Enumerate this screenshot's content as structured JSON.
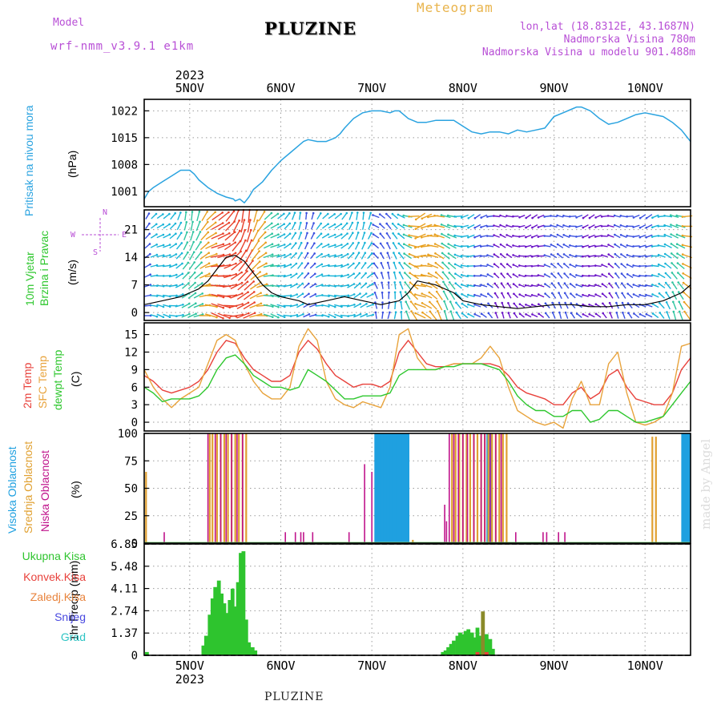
{
  "header": {
    "model_label": "Model",
    "model_name": "wrf-nmm_v3.9.1  e1km",
    "title": "PLUZINE",
    "subtitle": "Meteogram",
    "location": "lon,lat (18.8312E, 43.1687N)",
    "elevation": "Nadmorska Visina 780m",
    "model_elevation": "Nadmorska Visina u modelu 901.488m",
    "footer_title": "PLUZINE",
    "credit": "made by Angel"
  },
  "colors": {
    "pressure": "#2aa3e0",
    "temp2m": "#e8413b",
    "sfctemp": "#e8a33c",
    "dewpoint": "#2ec72e",
    "high_cloud": "#1fa0e0",
    "mid_cloud": "#e0a030",
    "low_cloud": "#c0148c",
    "total_precip": "#2ec42e",
    "conv_precip": "#e8413b",
    "frozen_precip": "#e8833c",
    "snow": "#4848e0",
    "hail": "#2ec4c4",
    "wind_slow": "#6a14c8",
    "wind_mid": "#18b4d8",
    "wind_fast": "#e8412a"
  },
  "axes": {
    "year": "2023",
    "dates": [
      "5NOV",
      "6NOV",
      "7NOV",
      "8NOV",
      "9NOV",
      "10NOV"
    ]
  },
  "chart_data": [
    {
      "type": "line",
      "name": "pressure",
      "ylabel": "Pritisak na nivou mora",
      "unit": "(hPa)",
      "ylim": [
        997,
        1025
      ],
      "yticks": [
        1001,
        1008,
        1015,
        1022
      ],
      "x_days": [
        4.5,
        6.5
      ],
      "series": [
        {
          "x": [
            4.5,
            4.55,
            4.6,
            4.7,
            4.8,
            4.9,
            4.97,
            5.0,
            5.05,
            5.1,
            5.2,
            5.3,
            5.4,
            5.48,
            5.5,
            5.55,
            5.6,
            5.65,
            5.7,
            5.8,
            5.9,
            6.0,
            6.1,
            6.2,
            6.25,
            6.3,
            6.4,
            6.5,
            6.6,
            6.65,
            6.7,
            6.8,
            6.9,
            7.0,
            7.1,
            7.2,
            7.25,
            7.3,
            7.4,
            7.5,
            7.6,
            7.7,
            7.8,
            7.9,
            8.0,
            8.1,
            8.2,
            8.3,
            8.4,
            8.5,
            8.6,
            8.7,
            8.8,
            8.9,
            9.0,
            9.1,
            9.2,
            9.25,
            9.3,
            9.4,
            9.5,
            9.6,
            9.7,
            9.8,
            9.9,
            10.0,
            10.1,
            10.2,
            10.3,
            10.4,
            10.5
          ],
          "values": [
            999,
            1001,
            1002,
            1003.5,
            1005,
            1006.5,
            1006.5,
            1006.5,
            1005.5,
            1004,
            1002,
            1000.5,
            999.5,
            999,
            998.5,
            999,
            998,
            999.5,
            1001.5,
            1003.5,
            1006.5,
            1009,
            1011,
            1013,
            1014,
            1014.5,
            1014,
            1014,
            1015,
            1016,
            1017.5,
            1020,
            1021.5,
            1022,
            1022,
            1021.5,
            1022,
            1022,
            1020,
            1019,
            1019,
            1019.5,
            1019.5,
            1019.5,
            1018,
            1016.5,
            1016,
            1016.5,
            1016.5,
            1016,
            1017,
            1016.5,
            1017,
            1017.5,
            1020.5,
            1021.5,
            1022.5,
            1023,
            1023,
            1022,
            1020,
            1018.5,
            1019,
            1020,
            1021,
            1021.5,
            1021,
            1020.5,
            1019,
            1017,
            1014
          ]
        }
      ]
    },
    {
      "type": "scatter",
      "name": "wind",
      "ylabel": "10m Vjetar Brzina i Pravac",
      "unit": "(m/s)",
      "ylim": [
        -2,
        26
      ],
      "yticks": [
        0,
        7,
        14,
        21
      ],
      "legend_arrows": [
        "N",
        "W",
        "E",
        "S"
      ],
      "series": [
        {
          "name": "speed",
          "x": [
            4.5,
            4.7,
            4.9,
            5.0,
            5.1,
            5.2,
            5.3,
            5.4,
            5.5,
            5.6,
            5.7,
            5.8,
            5.9,
            6.0,
            6.1,
            6.2,
            6.3,
            6.5,
            6.7,
            6.9,
            7.1,
            7.3,
            7.4,
            7.5,
            7.7,
            7.9,
            8.0,
            8.2,
            8.4,
            8.6,
            8.8,
            9.0,
            9.2,
            9.4,
            9.6,
            9.8,
            10.0,
            10.2,
            10.4,
            10.5
          ],
          "values": [
            2,
            3,
            4,
            5,
            6,
            8,
            11,
            14,
            14.5,
            13,
            10,
            7,
            5,
            4,
            3.5,
            3,
            2,
            3,
            4,
            3,
            2,
            3,
            5,
            8,
            7,
            5,
            3,
            2,
            1.5,
            1,
            1.5,
            2,
            2,
            1.5,
            1.5,
            2,
            2,
            3,
            5,
            7
          ]
        }
      ]
    },
    {
      "type": "line",
      "name": "temperature",
      "ylabels": [
        "2m Temp",
        "SFC Temp",
        "dewpt Temp"
      ],
      "unit": "(C)",
      "ylim": [
        -1.5,
        17
      ],
      "yticks": [
        0,
        3,
        6,
        9,
        12,
        15
      ],
      "series": [
        {
          "name": "2m Temp",
          "x": [
            4.5,
            4.6,
            4.7,
            4.8,
            4.9,
            5.0,
            5.1,
            5.2,
            5.3,
            5.4,
            5.5,
            5.6,
            5.7,
            5.8,
            5.9,
            6.0,
            6.1,
            6.2,
            6.3,
            6.4,
            6.5,
            6.6,
            6.7,
            6.8,
            6.9,
            7.0,
            7.1,
            7.2,
            7.3,
            7.4,
            7.5,
            7.6,
            7.7,
            7.8,
            7.9,
            8.0,
            8.1,
            8.2,
            8.3,
            8.4,
            8.5,
            8.6,
            8.7,
            8.8,
            8.9,
            9.0,
            9.1,
            9.2,
            9.3,
            9.4,
            9.5,
            9.6,
            9.7,
            9.8,
            9.9,
            10.0,
            10.1,
            10.2,
            10.3,
            10.4,
            10.5
          ],
          "values": [
            8,
            7,
            5.5,
            5,
            5.5,
            6,
            7,
            9,
            12,
            14,
            13.5,
            11,
            9,
            8,
            7,
            7,
            8,
            12,
            14,
            12.5,
            10,
            8,
            7,
            6,
            6.5,
            6.5,
            6,
            7,
            12,
            14,
            12,
            10,
            9.5,
            9.5,
            10,
            10,
            10,
            10,
            10,
            9.5,
            8,
            6,
            5,
            4.5,
            4,
            3,
            3,
            5,
            6,
            4,
            5,
            8,
            9,
            6,
            4,
            3.5,
            3,
            3,
            5,
            9,
            11
          ]
        },
        {
          "name": "SFC Temp",
          "x": [
            4.5,
            4.6,
            4.7,
            4.8,
            4.9,
            5.0,
            5.1,
            5.2,
            5.3,
            5.4,
            5.5,
            5.6,
            5.7,
            5.8,
            5.9,
            6.0,
            6.1,
            6.2,
            6.3,
            6.4,
            6.5,
            6.6,
            6.7,
            6.8,
            6.9,
            7.0,
            7.1,
            7.2,
            7.3,
            7.4,
            7.5,
            7.6,
            7.7,
            7.8,
            7.9,
            8.0,
            8.1,
            8.2,
            8.3,
            8.4,
            8.5,
            8.6,
            8.7,
            8.8,
            8.9,
            9.0,
            9.1,
            9.2,
            9.3,
            9.4,
            9.5,
            9.6,
            9.7,
            9.8,
            9.9,
            10.0,
            10.1,
            10.2,
            10.3,
            10.4,
            10.5
          ],
          "values": [
            9,
            6,
            4,
            2.5,
            4,
            5,
            6,
            10,
            14,
            15,
            14,
            10,
            7,
            5,
            4,
            4,
            6,
            13,
            16,
            14,
            7,
            4,
            3,
            2.5,
            3.5,
            3,
            2.5,
            6,
            15,
            16,
            11,
            9,
            9,
            9.5,
            10,
            10,
            10,
            11,
            13,
            11,
            6,
            2,
            1,
            0,
            -0.5,
            0,
            -1,
            4,
            7,
            3,
            3,
            10,
            12,
            5,
            0,
            -0.5,
            0,
            1,
            5,
            13,
            13.5
          ]
        },
        {
          "name": "dewpt Temp",
          "x": [
            4.5,
            4.6,
            4.7,
            4.8,
            4.9,
            5.0,
            5.1,
            5.2,
            5.3,
            5.4,
            5.5,
            5.6,
            5.7,
            5.8,
            5.9,
            6.0,
            6.1,
            6.2,
            6.3,
            6.4,
            6.5,
            6.6,
            6.7,
            6.8,
            6.9,
            7.0,
            7.1,
            7.2,
            7.3,
            7.4,
            7.5,
            7.6,
            7.7,
            7.8,
            7.9,
            8.0,
            8.1,
            8.2,
            8.3,
            8.4,
            8.5,
            8.6,
            8.7,
            8.8,
            8.9,
            9.0,
            9.1,
            9.2,
            9.3,
            9.4,
            9.5,
            9.6,
            9.7,
            9.8,
            9.9,
            10.0,
            10.1,
            10.2,
            10.3,
            10.4,
            10.5
          ],
          "values": [
            6,
            5,
            3.5,
            4,
            4,
            4,
            4.5,
            6,
            9,
            11,
            11.5,
            10,
            8,
            7,
            6,
            6,
            5.5,
            6,
            9,
            8,
            7,
            5.5,
            4,
            4,
            4.5,
            4.5,
            4.5,
            5,
            8,
            9,
            9,
            9,
            9,
            9.5,
            9.5,
            10,
            10,
            10,
            9.5,
            9,
            7,
            4.5,
            3,
            2,
            2,
            1,
            1,
            2,
            2,
            0,
            0.5,
            2,
            2,
            1,
            0,
            0,
            0.5,
            1,
            3,
            5,
            7
          ]
        }
      ]
    },
    {
      "type": "bar",
      "name": "cloud_cover",
      "ylabels": [
        "Visoka Oblacnost",
        "Srednja Oblacnost",
        "Niska Oblacnost"
      ],
      "unit": "(%)",
      "ylim": [
        0,
        100
      ],
      "yticks": [
        0,
        25,
        50,
        75,
        100
      ],
      "series": [
        {
          "name": "Visoka Oblacnost",
          "x": [
            7.05,
            7.08,
            7.12,
            7.15,
            7.18,
            7.22,
            7.25,
            7.29,
            7.32,
            7.35,
            7.39,
            8.28,
            8.3,
            10.42,
            10.45,
            10.48
          ],
          "values": [
            100,
            100,
            100,
            100,
            100,
            100,
            100,
            100,
            100,
            100,
            100,
            100,
            100,
            100,
            100,
            100
          ]
        },
        {
          "name": "Srednja Oblacnost",
          "x": [
            4.52,
            5.22,
            5.25,
            5.3,
            5.34,
            5.38,
            5.42,
            5.46,
            5.5,
            5.54,
            5.58,
            5.62,
            7.45,
            7.88,
            7.92,
            7.96,
            8.0,
            8.04,
            8.08,
            8.12,
            8.16,
            8.2,
            8.24,
            8.28,
            8.32,
            8.36,
            8.4,
            8.44,
            8.48,
            10.08,
            10.12
          ],
          "values": [
            65,
            100,
            100,
            100,
            100,
            100,
            100,
            100,
            100,
            100,
            100,
            100,
            3,
            100,
            100,
            100,
            100,
            100,
            100,
            100,
            100,
            100,
            100,
            100,
            100,
            100,
            100,
            100,
            100,
            97,
            97
          ]
        },
        {
          "name": "Niska Oblacnost",
          "x": [
            4.72,
            5.2,
            5.28,
            5.34,
            5.4,
            5.46,
            5.52,
            5.58,
            6.05,
            6.16,
            6.22,
            6.25,
            6.35,
            6.75,
            6.92,
            7.0,
            7.85,
            7.8,
            7.82,
            7.9,
            7.95,
            8.0,
            8.05,
            8.12,
            8.2,
            8.24,
            8.3,
            8.36,
            8.42,
            8.58,
            8.88,
            8.92,
            9.05,
            9.12
          ],
          "values": [
            10,
            100,
            100,
            100,
            100,
            100,
            100,
            100,
            10,
            10,
            10,
            10,
            10,
            10,
            72,
            65,
            100,
            35,
            20,
            100,
            100,
            100,
            100,
            100,
            100,
            100,
            100,
            100,
            100,
            10,
            10,
            10,
            10,
            10
          ]
        }
      ]
    },
    {
      "type": "bar",
      "name": "precipitation",
      "ylabel": "1hr Precip (mm)",
      "legend": [
        "Ukupna Kisa",
        "Konvek.Kisa",
        "Zaledj.Kisa",
        "Snijeg",
        "Grad"
      ],
      "ylim": [
        0,
        6.85
      ],
      "yticks": [
        0,
        1.37,
        2.74,
        4.11,
        5.48,
        6.85
      ],
      "series": [
        {
          "name": "Ukupna Kisa",
          "x": [
            4.53,
            5.15,
            5.18,
            5.22,
            5.25,
            5.28,
            5.32,
            5.35,
            5.38,
            5.41,
            5.44,
            5.47,
            5.5,
            5.53,
            5.56,
            5.59,
            5.62,
            5.65,
            5.69,
            5.72,
            7.78,
            7.81,
            7.84,
            7.87,
            7.9,
            7.94,
            7.97,
            8.0,
            8.03,
            8.06,
            8.1,
            8.13,
            8.16,
            8.19,
            8.22,
            8.26,
            8.3,
            8.33
          ],
          "values": [
            0.2,
            0.6,
            1.2,
            2.5,
            3.5,
            4.2,
            4.6,
            3.8,
            3.2,
            2.6,
            3.4,
            4.1,
            3.0,
            4.5,
            6.3,
            6.4,
            2.2,
            0.8,
            0.5,
            0.3,
            0.2,
            0.3,
            0.5,
            0.7,
            0.9,
            1.2,
            1.4,
            1.3,
            1.5,
            1.6,
            1.4,
            1.1,
            1.7,
            1.2,
            2.7,
            1.3,
            1.0,
            0.4
          ]
        },
        {
          "name": "Konvek.Kisa",
          "x": [
            8.16,
            8.26
          ],
          "values": [
            0.2,
            0.2
          ]
        }
      ]
    }
  ]
}
